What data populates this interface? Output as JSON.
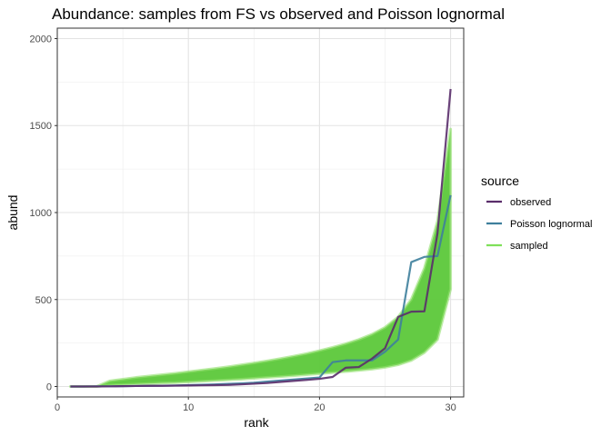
{
  "chart_data": {
    "type": "line",
    "title": "Abundance: samples from FS vs observed and Poisson lognormal",
    "xlabel": "rank",
    "ylabel": "abund",
    "xlim": [
      0,
      31
    ],
    "ylim": [
      -60,
      2060
    ],
    "xticks": [
      0,
      10,
      20,
      30
    ],
    "yticks": [
      0,
      500,
      1000,
      1500,
      2000
    ],
    "grid": true,
    "legend_position": "right",
    "legend_title": "source",
    "x": [
      1,
      2,
      3,
      4,
      5,
      6,
      7,
      8,
      9,
      10,
      11,
      12,
      13,
      14,
      15,
      16,
      17,
      18,
      19,
      20,
      21,
      22,
      23,
      24,
      25,
      26,
      27,
      28,
      29,
      30
    ],
    "series": [
      {
        "name": "sampled",
        "color": "#5cc83a",
        "kind": "band",
        "lower": [
          0,
          0,
          0,
          8,
          10,
          14,
          17,
          20,
          22,
          26,
          30,
          34,
          38,
          42,
          47,
          52,
          57,
          62,
          68,
          74,
          80,
          86,
          93,
          100,
          110,
          125,
          150,
          195,
          270,
          560
        ],
        "upper": [
          0,
          0,
          0,
          32,
          42,
          52,
          60,
          68,
          76,
          85,
          94,
          103,
          113,
          124,
          135,
          147,
          160,
          174,
          189,
          206,
          225,
          246,
          270,
          300,
          340,
          400,
          500,
          680,
          950,
          1480
        ]
      },
      {
        "name": "Poisson lognormal",
        "color": "#3e7f9c",
        "kind": "line",
        "values": [
          0,
          0,
          1,
          1,
          2,
          3,
          4,
          5,
          6,
          8,
          10,
          12,
          15,
          18,
          22,
          28,
          34,
          40,
          46,
          52,
          140,
          150,
          150,
          150,
          200,
          270,
          715,
          745,
          750,
          1100
        ]
      },
      {
        "name": "observed",
        "color": "#5a2d6b",
        "kind": "line",
        "values": [
          0,
          0,
          0,
          1,
          2,
          3,
          4,
          4,
          5,
          6,
          7,
          8,
          9,
          12,
          16,
          20,
          26,
          32,
          38,
          44,
          55,
          108,
          112,
          160,
          220,
          400,
          430,
          432,
          880,
          1710
        ]
      }
    ],
    "legend": [
      {
        "label": "observed",
        "color": "#5a2d6b"
      },
      {
        "label": "Poisson lognormal",
        "color": "#3e7f9c"
      },
      {
        "label": "sampled",
        "color": "#7fe05a"
      }
    ]
  }
}
